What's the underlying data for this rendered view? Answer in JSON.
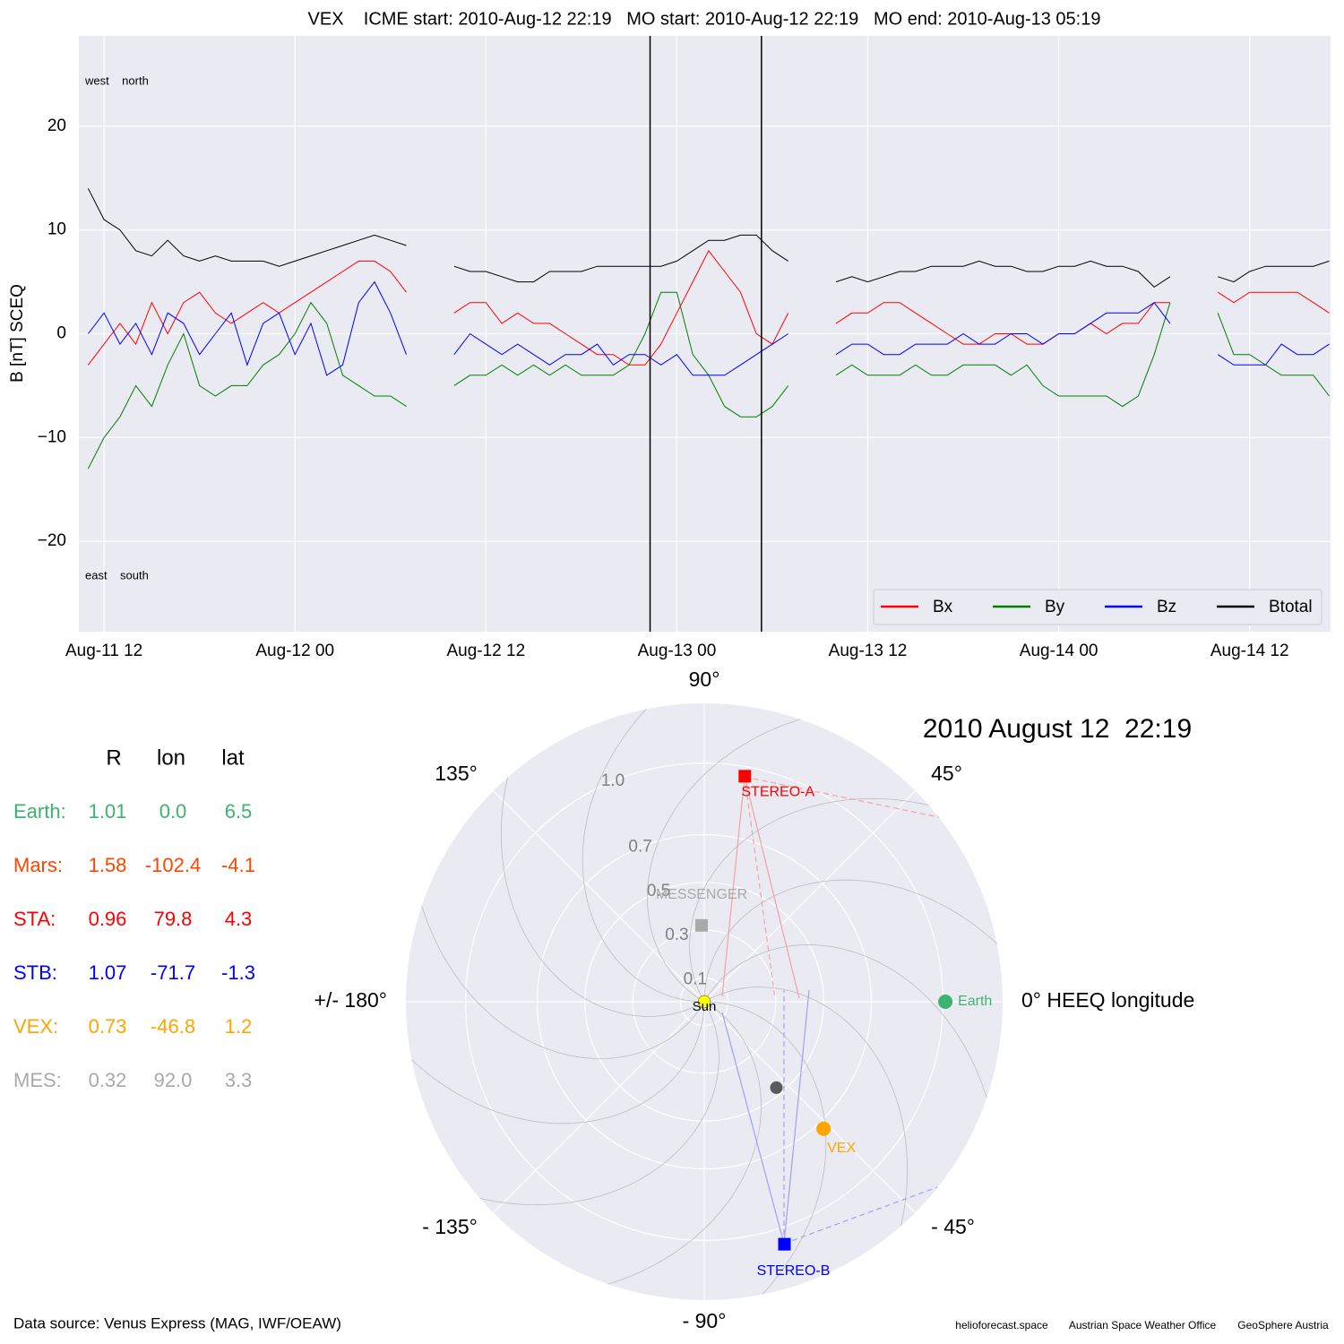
{
  "chart_data": [
    {
      "type": "line",
      "title": "VEX    ICME start: 2010-Aug-12 22:19   MO start: 2010-Aug-12 22:19   MO end: 2010-Aug-13 05:19",
      "y_label": "B [nT] SCEQ",
      "annotations": [
        "west    north",
        "east    south"
      ],
      "x": [
        "Aug-11 11:00",
        "Aug-11 12:00",
        "Aug-11 13:00",
        "Aug-11 14:00",
        "Aug-11 15:00",
        "Aug-11 16:00",
        "Aug-11 17:00",
        "Aug-11 18:00",
        "Aug-11 19:00",
        "Aug-11 20:00",
        "Aug-11 21:00",
        "Aug-11 22:00",
        "Aug-11 23:00",
        "Aug-12 00:00",
        "Aug-12 01:00",
        "Aug-12 02:00",
        "Aug-12 03:00",
        "Aug-12 04:00",
        "Aug-12 05:00",
        "Aug-12 06:00",
        "Aug-12 07:00",
        "Aug-12 08:00",
        "Aug-12 09:00",
        "Aug-12 10:00",
        "Aug-12 11:00",
        "Aug-12 12:00",
        "Aug-12 13:00",
        "Aug-12 14:00",
        "Aug-12 15:00",
        "Aug-12 16:00",
        "Aug-12 17:00",
        "Aug-12 18:00",
        "Aug-12 19:00",
        "Aug-12 20:00",
        "Aug-12 21:00",
        "Aug-12 22:00",
        "Aug-12 23:00",
        "Aug-13 00:00",
        "Aug-13 01:00",
        "Aug-13 02:00",
        "Aug-13 03:00",
        "Aug-13 04:00",
        "Aug-13 05:00",
        "Aug-13 06:00",
        "Aug-13 07:00",
        "Aug-13 08:00",
        "Aug-13 09:00",
        "Aug-13 10:00",
        "Aug-13 11:00",
        "Aug-13 12:00",
        "Aug-13 13:00",
        "Aug-13 14:00",
        "Aug-13 15:00",
        "Aug-13 16:00",
        "Aug-13 17:00",
        "Aug-13 18:00",
        "Aug-13 19:00",
        "Aug-13 20:00",
        "Aug-13 21:00",
        "Aug-13 22:00",
        "Aug-13 23:00",
        "Aug-14 00:00",
        "Aug-14 01:00",
        "Aug-14 02:00",
        "Aug-14 03:00",
        "Aug-14 04:00",
        "Aug-14 05:00",
        "Aug-14 06:00",
        "Aug-14 07:00",
        "Aug-14 08:00",
        "Aug-14 09:00",
        "Aug-14 10:00",
        "Aug-14 11:00",
        "Aug-14 12:00",
        "Aug-14 13:00",
        "Aug-14 14:00",
        "Aug-14 15:00",
        "Aug-14 16:00",
        "Aug-14 17:00"
      ],
      "series": [
        {
          "name": "Bx",
          "color": "#ff0000",
          "values": [
            -3,
            -1,
            1,
            -1,
            3,
            0,
            3,
            4,
            2,
            1,
            2,
            3,
            2,
            3,
            4,
            5,
            6,
            7,
            7,
            6,
            4,
            null,
            null,
            2,
            3,
            3,
            1,
            2,
            1,
            1,
            0,
            -1,
            -2,
            -2,
            -3,
            -3,
            -1,
            2,
            5,
            8,
            6,
            4,
            0,
            -1,
            2,
            null,
            null,
            1,
            2,
            2,
            3,
            3,
            2,
            1,
            0,
            -1,
            -1,
            0,
            0,
            -1,
            -1,
            0,
            0,
            1,
            0,
            1,
            1,
            3,
            3,
            null,
            null,
            4,
            3,
            4,
            4,
            4,
            4,
            3,
            2
          ]
        },
        {
          "name": "By",
          "color": "#008000",
          "values": [
            -13,
            -10,
            -8,
            -5,
            -7,
            -3,
            0,
            -5,
            -6,
            -5,
            -5,
            -3,
            -2,
            0,
            3,
            1,
            -4,
            -5,
            -6,
            -6,
            -7,
            null,
            null,
            -5,
            -4,
            -4,
            -3,
            -4,
            -3,
            -4,
            -3,
            -4,
            -4,
            -4,
            -3,
            0,
            4,
            4,
            -2,
            -4,
            -7,
            -8,
            -8,
            -7,
            -5,
            null,
            null,
            -4,
            -3,
            -4,
            -4,
            -4,
            -3,
            -4,
            -4,
            -3,
            -3,
            -3,
            -4,
            -3,
            -5,
            -6,
            -6,
            -6,
            -6,
            -7,
            -6,
            -2,
            3,
            null,
            null,
            2,
            -2,
            -2,
            -3,
            -4,
            -4,
            -4,
            -6
          ]
        },
        {
          "name": "Bz",
          "color": "#0000ff",
          "values": [
            0,
            2,
            -1,
            1,
            -2,
            2,
            1,
            -2,
            0,
            2,
            -3,
            1,
            2,
            -2,
            1,
            -4,
            -3,
            3,
            5,
            2,
            -2,
            null,
            null,
            -2,
            0,
            -1,
            -2,
            -1,
            -2,
            -3,
            -2,
            -2,
            -1,
            -3,
            -2,
            -2,
            -3,
            -2,
            -4,
            -4,
            -4,
            -3,
            -2,
            -1,
            0,
            null,
            null,
            -2,
            -1,
            -1,
            -2,
            -2,
            -1,
            -1,
            -1,
            0,
            -1,
            -1,
            0,
            0,
            -1,
            0,
            0,
            1,
            2,
            2,
            2,
            3,
            1,
            null,
            null,
            -2,
            -3,
            -3,
            -3,
            -1,
            -2,
            -2,
            -1
          ]
        },
        {
          "name": "Btotal",
          "color": "#000000",
          "values": [
            14,
            11,
            10,
            8,
            7.5,
            9,
            7.5,
            7,
            7.5,
            7,
            7,
            7,
            6.5,
            7,
            7.5,
            8,
            8.5,
            9,
            9.5,
            9,
            8.5,
            null,
            null,
            6.5,
            6,
            6,
            5.5,
            5,
            5,
            6,
            6,
            6,
            6.5,
            6.5,
            6.5,
            6.5,
            6.5,
            7,
            8,
            9,
            9,
            9.5,
            9.5,
            8,
            7,
            null,
            null,
            5,
            5.5,
            5,
            5.5,
            6,
            6,
            6.5,
            6.5,
            6.5,
            7,
            6.5,
            6.5,
            6,
            6,
            6.5,
            6.5,
            7,
            6.5,
            6.5,
            6,
            4.5,
            5.5,
            null,
            null,
            5.5,
            5,
            6,
            6.5,
            6.5,
            6.5,
            6.5,
            7
          ]
        }
      ],
      "event_lines": [
        "Aug-12 22:19",
        "Aug-13 05:19"
      ],
      "xlim": [
        "Aug-11 10:25",
        "Aug-14 17:05"
      ],
      "xticks": [
        {
          "value": "Aug-11 12:00",
          "label": "Aug-11 12"
        },
        {
          "value": "Aug-12 00:00",
          "label": "Aug-12 00"
        },
        {
          "value": "Aug-12 12:00",
          "label": "Aug-12 12"
        },
        {
          "value": "Aug-13 00:00",
          "label": "Aug-13 00"
        },
        {
          "value": "Aug-13 12:00",
          "label": "Aug-13 12"
        },
        {
          "value": "Aug-14 00:00",
          "label": "Aug-14 00"
        },
        {
          "value": "Aug-14 12:00",
          "label": "Aug-14 12"
        }
      ],
      "ylim": [
        -28.7,
        28.7
      ],
      "yticks": [
        {
          "value": -20,
          "label": "−20"
        },
        {
          "value": -10,
          "label": "−10"
        },
        0,
        10,
        20
      ],
      "grid": true,
      "legend": "lower right"
    },
    {
      "type": "polar",
      "title": "2010 August 12  22:19",
      "rlim": [
        0,
        1.25
      ],
      "rticks": [
        0.1,
        0.3,
        0.5,
        0.7,
        {
          "value": 1.0,
          "label": "1.0"
        }
      ],
      "thetaticks": [
        {
          "value": 90,
          "label": "90°"
        },
        {
          "value": 45,
          "label": "45°"
        },
        {
          "value": 0,
          "label": "0° HEEQ longitude"
        },
        {
          "value": -45,
          "label": "- 45°"
        },
        {
          "value": -90,
          "label": "- 90°"
        },
        {
          "value": -135,
          "label": "- 135°"
        },
        {
          "value": 180,
          "label": "+/- 180°"
        },
        {
          "value": 135,
          "label": "135°"
        }
      ],
      "columns": [
        "R",
        "lon",
        "lat"
      ],
      "sun": {
        "label": "Sun",
        "color": "#ffff00"
      },
      "bodies": [
        {
          "name": "Earth:",
          "label": "Earth",
          "marker": "circle",
          "color": "#3cb371",
          "values": [
            1.01,
            0.0,
            6.5
          ],
          "value_labels": [
            "1.01",
            "0.0",
            "6.5"
          ]
        },
        {
          "name": "Mars:",
          "color": "#ff4500",
          "values": [
            1.58,
            -102.4,
            -4.1
          ],
          "value_labels": [
            "1.58",
            "-102.4",
            "-4.1"
          ]
        },
        {
          "name": "STA:",
          "label": "STEREO-A",
          "marker": "square",
          "color": "#ff0000",
          "values": [
            0.96,
            79.8,
            4.3
          ],
          "value_labels": [
            "0.96",
            "79.8",
            "4.3"
          ]
        },
        {
          "name": "STB:",
          "label": "STEREO-B",
          "marker": "square",
          "color": "#0000ff",
          "values": [
            1.07,
            -71.7,
            -1.3
          ],
          "value_labels": [
            "1.07",
            "-71.7",
            "-1.3"
          ]
        },
        {
          "name": "VEX:",
          "label": "VEX",
          "marker": "circle",
          "color": "#ffa500",
          "values": [
            0.73,
            -46.8,
            1.2
          ],
          "value_labels": [
            "0.73",
            "-46.8",
            "1.2"
          ]
        },
        {
          "name": "MES:",
          "label": "MESSENGER",
          "marker": "square",
          "color": "#a9a9a9",
          "values": [
            0.32,
            92.0,
            3.3
          ],
          "value_labels": [
            "0.32",
            "92.0",
            "3.3"
          ]
        }
      ],
      "other_bodies": [
        {
          "r": 0.47,
          "lon": -50,
          "color": "#5a5a5a"
        }
      ]
    }
  ],
  "footer": {
    "source": "Data source: Venus Express (MAG, IWF/OEAW)",
    "credits": [
      "helioforecast.space",
      "Austrian Space Weather Office",
      "GeoSphere Austria"
    ]
  }
}
